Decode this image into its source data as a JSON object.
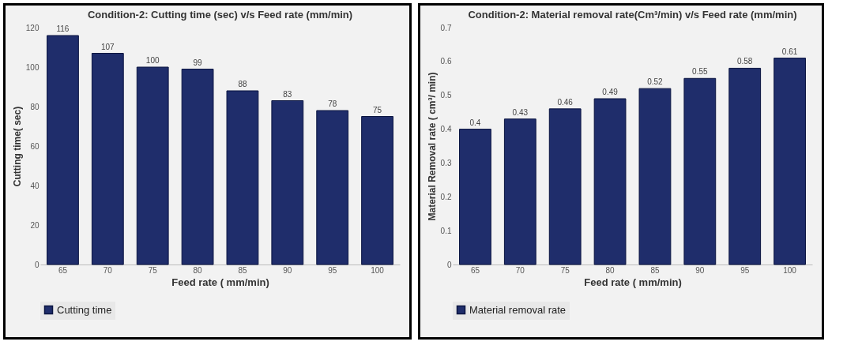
{
  "chart_data": [
    {
      "type": "bar",
      "title": "Condition-2: Cutting time (sec)  v/s  Feed rate (mm/min)",
      "xlabel": "Feed rate  ( mm/min)",
      "ylabel": "Cutting time( sec)",
      "categories": [
        "65",
        "70",
        "75",
        "80",
        "85",
        "90",
        "95",
        "100"
      ],
      "series": [
        {
          "name": "Cutting time",
          "color": "#1f2d6b",
          "values": [
            116,
            107,
            100,
            99,
            88,
            83,
            78,
            75
          ]
        }
      ],
      "ylim": [
        0,
        120
      ],
      "yticks": [
        0,
        20,
        40,
        60,
        80,
        100,
        120
      ],
      "data_labels": true,
      "legend": "bottom",
      "grid": false
    },
    {
      "type": "bar",
      "title": "Condition-2: Material removal rate(Cm³/min) v/s Feed rate (mm/min)",
      "xlabel": "Feed rate ( mm/min)",
      "ylabel": "Material Removal rate ( cm³/ min)",
      "categories": [
        "65",
        "70",
        "75",
        "80",
        "85",
        "90",
        "95",
        "100"
      ],
      "series": [
        {
          "name": "Material removal rate",
          "color": "#1f2d6b",
          "values": [
            0.4,
            0.43,
            0.46,
            0.49,
            0.52,
            0.55,
            0.58,
            0.61
          ]
        }
      ],
      "ylim": [
        0,
        0.7
      ],
      "yticks": [
        0,
        0.1,
        0.2,
        0.3,
        0.4,
        0.5,
        0.6,
        0.7
      ],
      "data_labels": true,
      "legend": "bottom",
      "grid": false
    }
  ]
}
